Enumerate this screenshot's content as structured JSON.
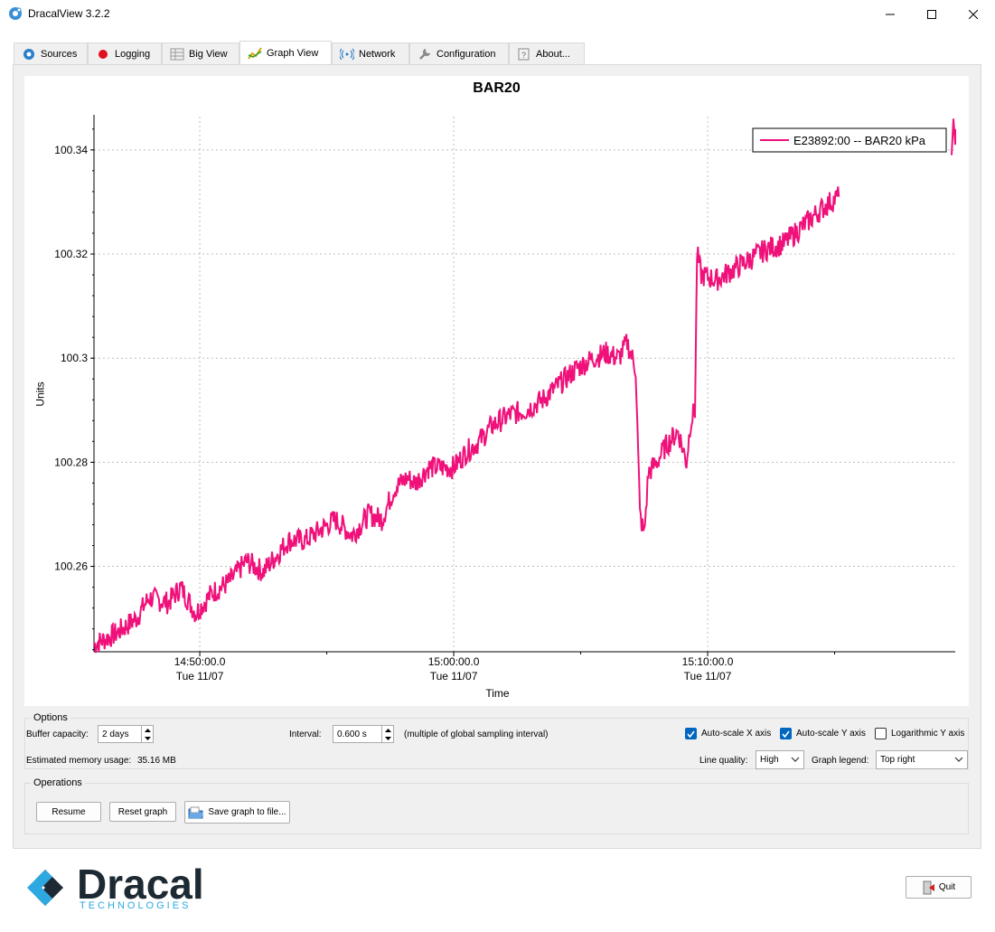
{
  "window": {
    "title": "DracalView 3.2.2"
  },
  "tabs": [
    {
      "label": "Sources",
      "icon": "sources-gear-icon"
    },
    {
      "label": "Logging",
      "icon": "record-icon"
    },
    {
      "label": "Big View",
      "icon": "grid-icon"
    },
    {
      "label": "Graph View",
      "icon": "graph-icon",
      "active": true
    },
    {
      "label": "Network",
      "icon": "wifi-icon"
    },
    {
      "label": "Configuration",
      "icon": "wrench-icon"
    },
    {
      "label": "About...",
      "icon": "about-icon"
    }
  ],
  "chart_data": {
    "type": "line",
    "title": "BAR20",
    "xlabel": "Time",
    "ylabel": "Units",
    "y_ticks": [
      "100.26",
      "100.28",
      "100.3",
      "100.32",
      "100.34"
    ],
    "x_ticks": [
      {
        "time": "14:50:00.0",
        "date": "Tue 11/07"
      },
      {
        "time": "15:00:00.0",
        "date": "Tue 11/07"
      },
      {
        "time": "15:10:00.0",
        "date": "Tue 11/07"
      }
    ],
    "ylim": [
      100.2436,
      100.3464
    ],
    "xlim": [
      "14:45:50",
      "15:19:45"
    ],
    "grid": true,
    "legend": "top-right",
    "color": "#f0107a",
    "series": [
      {
        "name": "E23892:00 -- BAR20 kPa",
        "x": [
          "14:45:50",
          "14:46:40",
          "14:47:30",
          "14:48:00",
          "14:48:45",
          "14:49:15",
          "14:49:50",
          "14:50:30",
          "14:51:10",
          "14:51:50",
          "14:52:30",
          "14:53:00",
          "14:53:30",
          "14:54:10",
          "14:54:45",
          "14:55:20",
          "14:56:00",
          "14:56:40",
          "14:57:10",
          "14:57:40",
          "14:58:10",
          "14:58:30",
          "14:59:00",
          "14:59:30",
          "15:00:00",
          "15:00:30",
          "15:01:00",
          "15:01:30",
          "15:02:10",
          "15:02:50",
          "15:03:30",
          "15:04:10",
          "15:04:50",
          "15:05:30",
          "15:06:00",
          "15:06:30",
          "15:06:50",
          "15:07:10",
          "15:07:20",
          "15:07:30",
          "15:07:40",
          "15:08:00",
          "15:08:20",
          "15:08:50",
          "15:09:10",
          "15:09:20",
          "15:09:30",
          "15:09:35",
          "15:09:45",
          "15:10:20",
          "15:11:00",
          "15:11:40",
          "15:12:20",
          "15:13:00",
          "15:13:40",
          "15:14:20",
          "15:14:50",
          "15:15:10",
          "15:19:45"
        ],
        "values": [
          100.245,
          100.247,
          100.25,
          100.254,
          100.253,
          100.256,
          100.251,
          100.255,
          100.257,
          100.261,
          100.259,
          100.262,
          100.265,
          100.265,
          100.267,
          100.269,
          100.266,
          100.27,
          100.269,
          100.275,
          100.277,
          100.276,
          100.279,
          100.279,
          100.279,
          100.282,
          100.284,
          100.287,
          100.289,
          100.29,
          100.292,
          100.295,
          100.298,
          100.3,
          100.301,
          100.3,
          100.303,
          100.298,
          100.27,
          100.266,
          100.278,
          100.28,
          100.283,
          100.286,
          100.28,
          100.288,
          100.29,
          100.32,
          100.316,
          100.315,
          100.317,
          100.319,
          100.321,
          100.322,
          100.325,
          100.328,
          100.33,
          100.331,
          100.343
        ]
      }
    ]
  },
  "options": {
    "group_label": "Options",
    "buffer_capacity_label": "Buffer capacity:",
    "buffer_capacity_value": "2 days",
    "interval_label": "Interval:",
    "interval_value": "0.600 s",
    "interval_note": "(multiple of global sampling interval)",
    "memory_label": "Estimated memory usage:",
    "memory_value": "35.16 MB",
    "autoscale_x": {
      "label": "Auto-scale X axis",
      "checked": true
    },
    "autoscale_y": {
      "label": "Auto-scale Y axis",
      "checked": true
    },
    "log_y": {
      "label": "Logarithmic Y axis",
      "checked": false
    },
    "line_quality_label": "Line quality:",
    "line_quality_value": "High",
    "graph_legend_label": "Graph legend:",
    "graph_legend_value": "Top right"
  },
  "operations": {
    "group_label": "Operations",
    "resume": "Resume",
    "reset": "Reset graph",
    "save": "Save graph to file..."
  },
  "footer": {
    "logo_name": "Dracal",
    "logo_sub": "TECHNOLOGIES",
    "quit": "Quit"
  }
}
